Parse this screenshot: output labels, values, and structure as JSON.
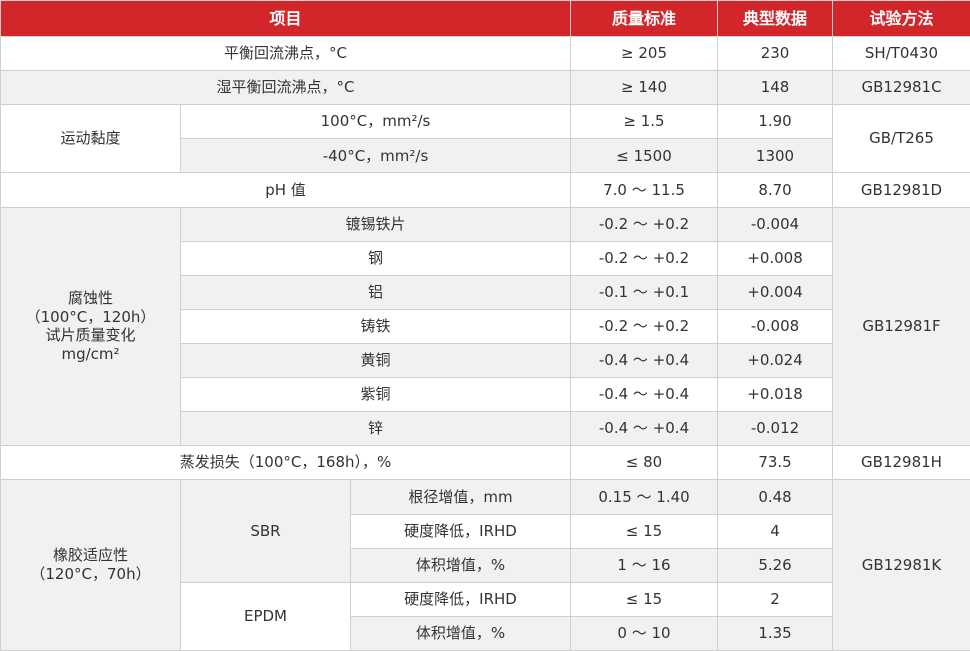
{
  "header": [
    "项目",
    "质量标准",
    "典型数据",
    "试验方法"
  ],
  "rows": [
    [
      "平衡回流沸点，°C",
      "≥ 205",
      "230",
      "SH/T0430"
    ],
    [
      "湿平衡回流沸点，°C",
      "≥ 140",
      "148",
      "GB12981C"
    ],
    [
      "运动黏度",
      "100°C，mm²/s",
      "≥ 1.5",
      "1.90",
      "GB/T265"
    ],
    [
      "-40°C，mm²/s",
      "≤ 1500",
      "1300"
    ],
    [
      "pH 值",
      "7.0 ～ 11.5",
      "8.70",
      "GB12981D"
    ],
    [
      [
        "腐蚀性",
        "（100°C，120h）",
        "试片质量变化",
        "mg/cm²"
      ],
      "镀锡铁片",
      "-0.2 ～ +0.2",
      "-0.004",
      "GB12981F"
    ],
    [
      "钢",
      "-0.2 ～ +0.2",
      "+0.008"
    ],
    [
      "铝",
      "-0.1 ～ +0.1",
      "+0.004"
    ],
    [
      "铸铁",
      "-0.2 ～ +0.2",
      "-0.008"
    ],
    [
      "黄铜",
      "-0.4 ～ +0.4",
      "+0.024"
    ],
    [
      "紫铜",
      "-0.4 ～ +0.4",
      "+0.018"
    ],
    [
      "锌",
      "-0.4 ～ +0.4",
      "-0.012"
    ],
    [
      "蒸发损失（100°C，168h），%",
      "≤ 80",
      "73.5",
      "GB12981H"
    ],
    [
      [
        "橡胶适应性",
        "（120°C，70h）"
      ],
      "SBR",
      "根径增值，mm",
      "0.15 ～ 1.40",
      "0.48",
      "GB12981K"
    ],
    [
      "硬度降低，IRHD",
      "≤ 15",
      "4"
    ],
    [
      "体积增值，%",
      "1 ～ 16",
      "5.26"
    ],
    [
      "EPDM",
      "硬度降低，IRHD",
      "≤ 15",
      "2"
    ],
    [
      "体积增值，%",
      "0 ～ 10",
      "1.35"
    ]
  ]
}
